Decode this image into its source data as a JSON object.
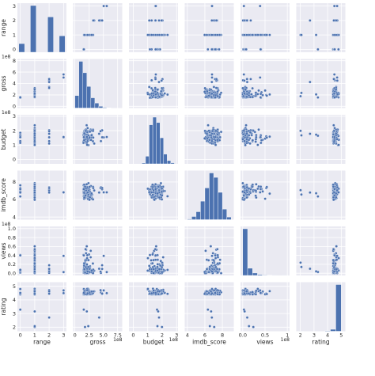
{
  "chart_data": {
    "type": "scatter",
    "kind": "pairplot",
    "background": "#eaeaf2",
    "grid_color": "#ffffff",
    "mark_color": "#4c72b0",
    "variables": [
      {
        "name": "range",
        "min": -0.2,
        "max": 3.2,
        "ticks": [
          0,
          1,
          2,
          3
        ],
        "tick_labels": [
          "0",
          "1",
          "2",
          "3"
        ],
        "exponent": ""
      },
      {
        "name": "gross",
        "min": -0.3,
        "max": 8.3,
        "ticks": [
          0,
          2.5,
          5.0,
          7.5
        ],
        "tick_labels": [
          "0",
          "2.5",
          "5.0",
          "7.5"
        ],
        "yticks": [
          0,
          2,
          4,
          6,
          8
        ],
        "ytick_labels": [
          "0",
          "2",
          "4",
          "6",
          "8"
        ],
        "exponent": "1e8"
      },
      {
        "name": "budget",
        "min": -0.3,
        "max": 3.1,
        "ticks": [
          0,
          1,
          2,
          3
        ],
        "tick_labels": [
          "0",
          "1",
          "2",
          "3"
        ],
        "exponent": "1e8"
      },
      {
        "name": "imdb_score",
        "min": 3.7,
        "max": 9.3,
        "ticks": [
          4,
          6,
          8
        ],
        "tick_labels": [
          "4",
          "6",
          "8"
        ],
        "exponent": ""
      },
      {
        "name": "views",
        "min": -0.05,
        "max": 1.05,
        "ticks": [
          0,
          0.5,
          1
        ],
        "tick_labels": [
          "0.0",
          "0.5",
          "1"
        ],
        "yticks": [
          0,
          0.2,
          0.4,
          0.6,
          0.8,
          1.0
        ],
        "ytick_labels": [
          "0.0",
          "0.2",
          "0.4",
          "0.6",
          "0.8",
          "1.0"
        ],
        "exponent": "1e8"
      },
      {
        "name": "rating",
        "min": 1.7,
        "max": 5.3,
        "ticks": [
          2,
          3,
          4,
          5
        ],
        "tick_labels": [
          "2",
          "3",
          "4",
          "5"
        ],
        "exponent": ""
      }
    ],
    "histograms": {
      "range": {
        "edges": [
          -0.1,
          0.3,
          0.7,
          1.1,
          1.5,
          1.9,
          2.3,
          2.7,
          3.1
        ],
        "counts": [
          38,
          0,
          205,
          0,
          0,
          155,
          0,
          72
        ]
      },
      "gross": {
        "edges": [
          0,
          0.7,
          1.4,
          2.1,
          2.8,
          3.5,
          4.2,
          4.9,
          5.6,
          6.3
        ],
        "counts": [
          55,
          205,
          155,
          95,
          45,
          22,
          8,
          3,
          1
        ]
      },
      "budget": {
        "edges": [
          0.6,
          0.85,
          1.1,
          1.35,
          1.6,
          1.85,
          2.1,
          2.35,
          2.6,
          2.85
        ],
        "counts": [
          4,
          35,
          180,
          215,
          190,
          120,
          45,
          15,
          5
        ]
      },
      "imdb_score": {
        "edges": [
          4.0,
          4.5,
          5.0,
          5.5,
          6.0,
          6.5,
          7.0,
          7.5,
          8.0,
          8.5,
          9.0
        ],
        "counts": [
          4,
          18,
          45,
          105,
          180,
          265,
          240,
          155,
          60,
          15
        ]
      },
      "views": {
        "edges": [
          0,
          0.11,
          0.22,
          0.33,
          0.44,
          0.55,
          0.66,
          0.77,
          0.88,
          0.99
        ],
        "counts": [
          420,
          65,
          22,
          8,
          4,
          2,
          1,
          0,
          1
        ]
      },
      "rating": {
        "edges": [
          1.8,
          2.2,
          2.6,
          3.0,
          3.4,
          3.8,
          4.2,
          4.6,
          5.0
        ],
        "counts": [
          1,
          0,
          0,
          0,
          0,
          5,
          18,
          430
        ]
      }
    }
  }
}
